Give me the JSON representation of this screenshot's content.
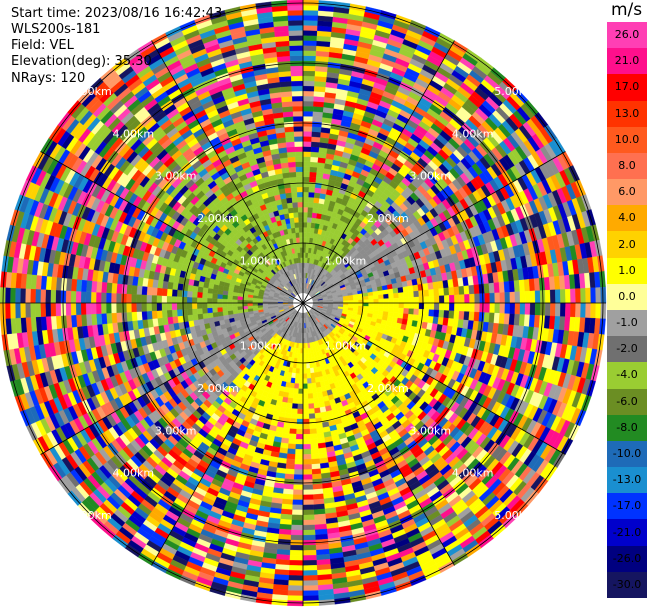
{
  "header": {
    "start_time": "Start time: 2023/08/16 16:42:43",
    "instrument": "WLS200s-181",
    "field": "Field: VEL",
    "elevation": "Elevation(deg): 35.30",
    "nrays": "NRays: 120"
  },
  "colorbar": {
    "unit": "m/s",
    "ticks": [
      "26.0",
      "21.0",
      "17.0",
      "13.0",
      "10.0",
      "8.0",
      "6.0",
      "4.0",
      "2.0",
      "1.0",
      "0.0",
      "-1.0",
      "-2.0",
      "-4.0",
      "-6.0",
      "-8.0",
      "-10.0",
      "-13.0",
      "-17.0",
      "-21.0",
      "-26.0",
      "-30.0"
    ],
    "colors": [
      "#ff3fb4",
      "#ff0f8c",
      "#ff0000",
      "#ff3300",
      "#ff5a1e",
      "#ff7050",
      "#ff9966",
      "#ffaa00",
      "#ffd200",
      "#ffff00",
      "#ffff99",
      "#a0a0a0",
      "#707070",
      "#9acd32",
      "#6b8e23",
      "#228b22",
      "#1e6bb8",
      "#1a8fd0",
      "#0033ff",
      "#0000cc",
      "#000080",
      "#151560"
    ]
  },
  "chart_data": {
    "type": "ppi",
    "title": "",
    "field": "VEL",
    "elevation_deg": 35.3,
    "nrays": 120,
    "range_ring_labels": [
      "1.00km",
      "2.00km",
      "3.00km",
      "4.00km",
      "5.00km"
    ],
    "range_rings_km": [
      1,
      2,
      3,
      4,
      5
    ],
    "azimuth_lines_deg": [
      0,
      30,
      60,
      90,
      120,
      150,
      180,
      210,
      240,
      270,
      300,
      330
    ],
    "value_range": [
      -30.0,
      26.0
    ],
    "pattern": "inner region (<~2.5 km) shows coherent velocities near 0 (grey), -2 m/s (olive green, north-west) and +2 m/s (yellow, south-east); outer ranges are noisy"
  }
}
